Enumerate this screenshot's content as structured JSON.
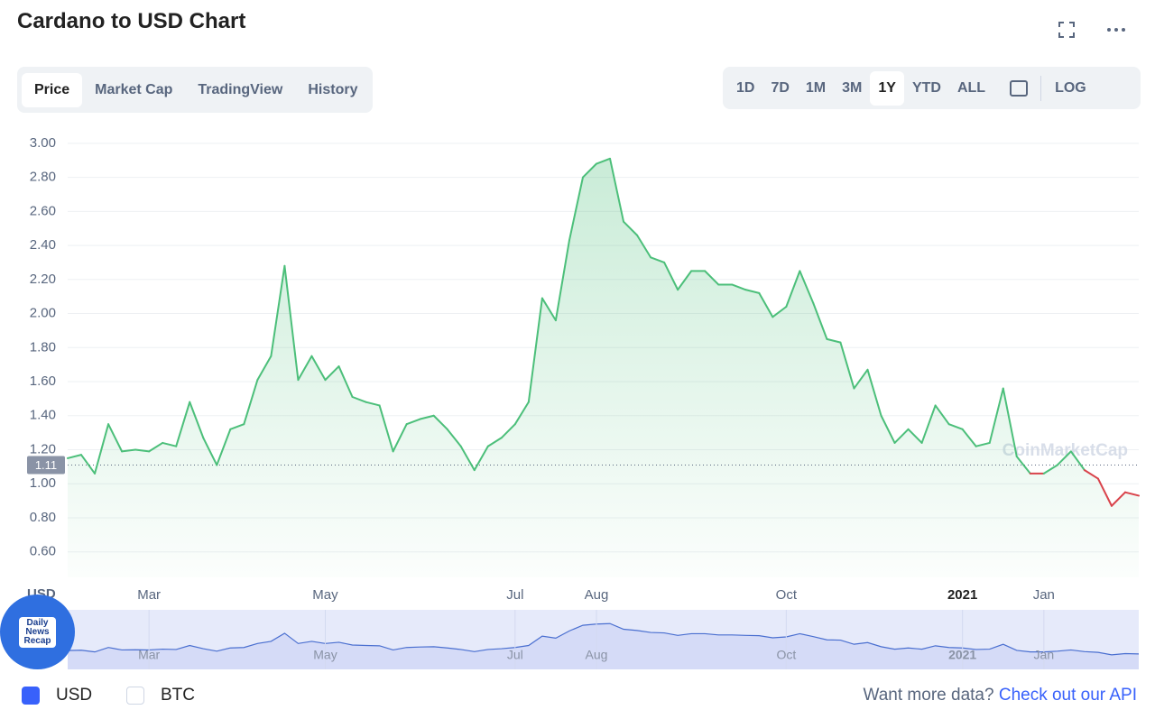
{
  "header": {
    "title": "Cardano to USD Chart"
  },
  "tabs": [
    "Price",
    "Market Cap",
    "TradingView",
    "History"
  ],
  "ranges": [
    "1D",
    "7D",
    "1M",
    "3M",
    "1Y",
    "YTD",
    "ALL",
    "LOG"
  ],
  "watermark": "CoinMarketCap",
  "badge": [
    "Daily",
    "News",
    "Recap"
  ],
  "footer": {
    "currencies": [
      "USD",
      "BTC"
    ],
    "prompt": "Want more data?",
    "link": "Check out our API"
  },
  "chart_data": {
    "type": "line",
    "y_label": "USD",
    "categories": [
      null,
      null,
      null,
      null,
      null,
      null,
      "Mar",
      null,
      null,
      null,
      null,
      null,
      null,
      null,
      null,
      null,
      null,
      null,
      null,
      "May",
      null,
      null,
      null,
      null,
      null,
      null,
      null,
      null,
      null,
      null,
      null,
      null,
      null,
      "Jul",
      null,
      null,
      null,
      null,
      null,
      "Aug",
      null,
      null,
      null,
      null,
      null,
      null,
      null,
      null,
      null,
      null,
      null,
      null,
      null,
      "Oct",
      null,
      null,
      null,
      null,
      null,
      null,
      null,
      null,
      null,
      null,
      null,
      null,
      "2021",
      null,
      null,
      null,
      null,
      null,
      "Jan",
      null,
      null,
      null,
      null,
      null,
      null,
      null
    ],
    "series": [
      {
        "name": "USD",
        "color": "#4cbf7a",
        "values": [
          1.15,
          1.17,
          1.06,
          1.35,
          1.19,
          1.2,
          1.19,
          1.24,
          1.22,
          1.48,
          1.27,
          1.11,
          1.32,
          1.35,
          1.61,
          1.75,
          2.28,
          1.61,
          1.75,
          1.61,
          1.69,
          1.51,
          1.48,
          1.46,
          1.19,
          1.35,
          1.38,
          1.4,
          1.32,
          1.22,
          1.08,
          1.22,
          1.27,
          1.35,
          1.48,
          2.09,
          1.96,
          2.43,
          2.8,
          2.88,
          2.91,
          2.54,
          2.46,
          2.33,
          2.3,
          2.14,
          2.25,
          2.25,
          2.17,
          2.17,
          2.14,
          2.12,
          1.98,
          2.04,
          2.25,
          2.06,
          1.85,
          1.83,
          1.56,
          1.67,
          1.4,
          1.24,
          1.32,
          1.24,
          1.46,
          1.35,
          1.32,
          1.22,
          1.24,
          1.56,
          1.16,
          1.06,
          1.06,
          1.11,
          1.19,
          1.08,
          1.03,
          0.87,
          0.95,
          0.93
        ]
      }
    ],
    "current_value": 1.11,
    "down_color": "#d9434b",
    "ylim": [
      0.45,
      3.1
    ],
    "yticks": [
      {
        "value": 0.6,
        "label": "0.60"
      },
      {
        "value": 0.8,
        "label": "0.80"
      },
      {
        "value": 1,
        "label": "1.00"
      },
      {
        "value": 1.2,
        "label": "1.20"
      },
      {
        "value": 1.4,
        "label": "1.40"
      },
      {
        "value": 1.6,
        "label": "1.60"
      },
      {
        "value": 1.8,
        "label": "1.80"
      },
      {
        "value": 2,
        "label": "2.00"
      },
      {
        "value": 2.2,
        "label": "2.20"
      },
      {
        "value": 2.4,
        "label": "2.40"
      },
      {
        "value": 2.6,
        "label": "2.60"
      },
      {
        "value": 2.8,
        "label": "2.80"
      },
      {
        "value": 3,
        "label": "3.00"
      }
    ],
    "grid": true
  }
}
